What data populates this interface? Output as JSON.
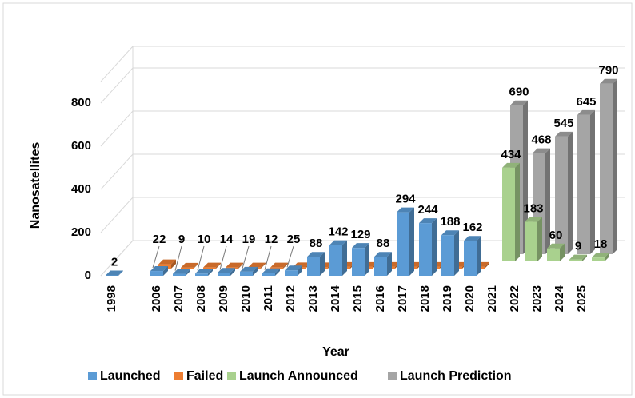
{
  "chart_data": {
    "type": "bar3d",
    "x_label": "Year",
    "y_label": "Nanosatellites",
    "categories": [
      "1998",
      null,
      "2006",
      "2007",
      "2008",
      "2009",
      "2010",
      "2011",
      "2012",
      "2013",
      "2014",
      "2015",
      "2016",
      "2017",
      "2018",
      "2019",
      "2020",
      "2021",
      "2022",
      "2023",
      "2024",
      "2025"
    ],
    "series": [
      {
        "name": "Launched",
        "color": "#5b9bd5",
        "data_labels": true,
        "values": [
          2,
          null,
          22,
          9,
          10,
          14,
          19,
          12,
          25,
          88,
          142,
          129,
          88,
          294,
          244,
          188,
          162,
          null,
          null,
          null,
          null,
          null
        ]
      },
      {
        "name": "Failed",
        "color": "#ed7d31",
        "data_labels": false,
        "values": [
          null,
          null,
          20,
          4,
          5,
          5,
          5,
          5,
          6,
          6,
          8,
          8,
          8,
          8,
          8,
          8,
          8,
          null,
          null,
          null,
          null,
          null
        ]
      },
      {
        "name": "Launch Announced",
        "color": "#a9d18e",
        "data_labels": true,
        "values": [
          null,
          null,
          null,
          null,
          null,
          null,
          null,
          null,
          null,
          null,
          null,
          null,
          null,
          null,
          null,
          null,
          null,
          434,
          183,
          60,
          9,
          18
        ]
      },
      {
        "name": "Launch Prediction",
        "color": "#a5a5a5",
        "data_labels": true,
        "values": [
          null,
          null,
          null,
          null,
          null,
          null,
          null,
          null,
          null,
          null,
          null,
          null,
          null,
          null,
          null,
          null,
          null,
          690,
          468,
          545,
          645,
          790
        ]
      }
    ],
    "ylim": [
      0,
      900
    ],
    "yticks": [
      0,
      200,
      400,
      600,
      800
    ],
    "grid": true,
    "legend": "bottom"
  }
}
